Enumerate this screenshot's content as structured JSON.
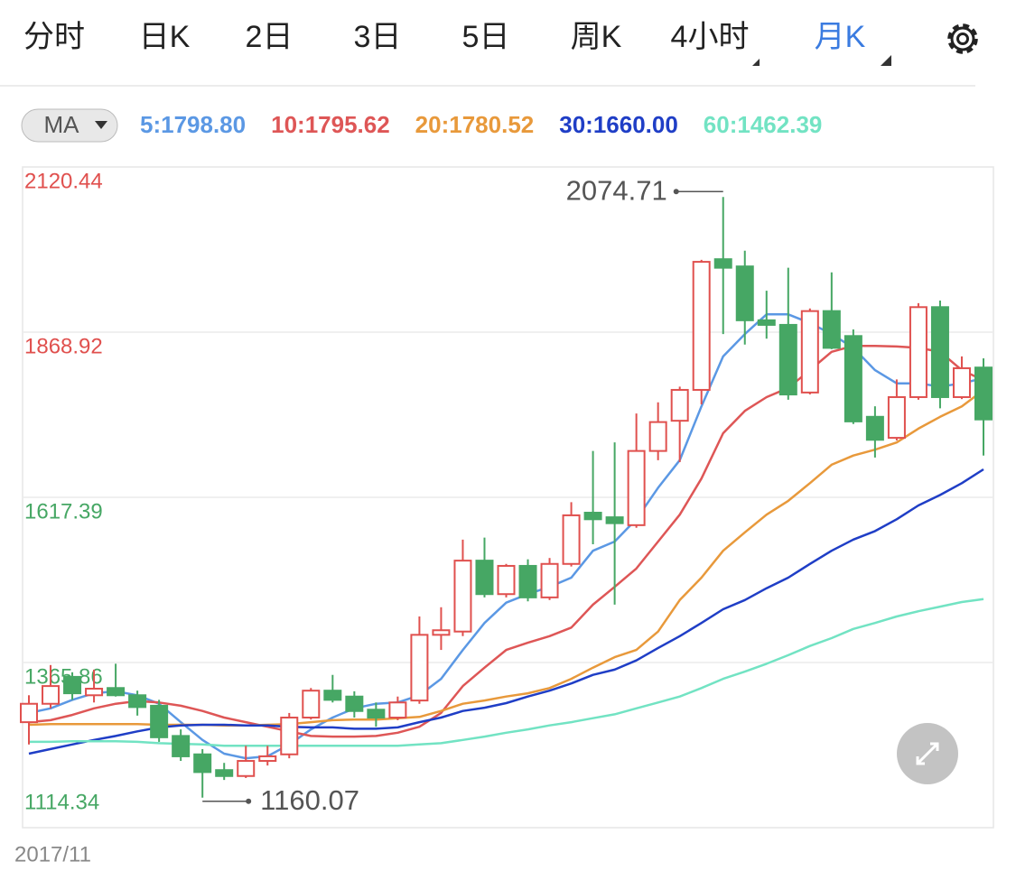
{
  "ui": {
    "tabs": [
      "分时",
      "日K",
      "2日",
      "3日",
      "5日",
      "周K",
      "4小时",
      "月K"
    ],
    "active_tab_index": 7,
    "indicator": "MA"
  },
  "chart_data": {
    "type": "candlestick",
    "categories": [
      "2017/11",
      null,
      null,
      null,
      null,
      null,
      null,
      null,
      null,
      null,
      null,
      null,
      null,
      null,
      null,
      null,
      null,
      null,
      null,
      null,
      null,
      null,
      null,
      null,
      null,
      null,
      null,
      null,
      null,
      null,
      null,
      null,
      null,
      null,
      null,
      null,
      null,
      null,
      null,
      null,
      null,
      null,
      null,
      null,
      null
    ],
    "open": [
      1275,
      1303,
      1344,
      1316,
      1327,
      1316,
      1300,
      1254,
      1226,
      1202,
      1193,
      1216,
      1226,
      1282,
      1323,
      1314,
      1294,
      1282,
      1308,
      1408,
      1413,
      1521,
      1470,
      1513,
      1465,
      1516,
      1594,
      1587,
      1575,
      1688,
      1734,
      1781,
      1980,
      1969,
      1887,
      1880,
      1777,
      1901,
      1863,
      1740,
      1708,
      1770,
      1907,
      1770,
      1815
    ],
    "close": [
      1303,
      1330,
      1319,
      1326,
      1316,
      1298,
      1252,
      1223,
      1199,
      1193,
      1216,
      1223,
      1282,
      1323,
      1309,
      1292,
      1282,
      1305,
      1408,
      1415,
      1521,
      1470,
      1513,
      1465,
      1516,
      1590,
      1584,
      1578,
      1688,
      1732,
      1781,
      1976,
      1967,
      1887,
      1880,
      1774,
      1901,
      1845,
      1733,
      1705,
      1770,
      1907,
      1770,
      1814,
      1736
    ],
    "high": [
      1316,
      1362,
      1351,
      1355,
      1364,
      1323,
      1309,
      1264,
      1234,
      1213,
      1239,
      1239,
      1289,
      1327,
      1347,
      1322,
      1305,
      1314,
      1436,
      1450,
      1553,
      1556,
      1516,
      1523,
      1525,
      1610,
      1688,
      1701,
      1745,
      1762,
      1786,
      1979,
      2074.71,
      1993,
      1932,
      1967,
      1905,
      1960,
      1873,
      1756,
      1797,
      1913,
      1917,
      1832,
      1829
    ],
    "low": [
      1241,
      1296,
      1309,
      1305,
      1314,
      1285,
      1245,
      1216,
      1160.07,
      1187,
      1190,
      1209,
      1220,
      1279,
      1305,
      1282,
      1268,
      1278,
      1303,
      1385,
      1406,
      1465,
      1465,
      1459,
      1461,
      1512,
      1546,
      1454,
      1571,
      1674,
      1671,
      1759,
      1866,
      1850,
      1859,
      1766,
      1774,
      1843,
      1729,
      1678,
      1704,
      1766,
      1753,
      1767,
      1681
    ],
    "up_color": "#e0504e",
    "down_color": "#46a764",
    "ylim": [
      1114.34,
      2120.44
    ],
    "yticks": [
      1114.34,
      1365.86,
      1617.39,
      1868.92,
      2120.44
    ],
    "ytick_colors": [
      "#46a764",
      "#46a764",
      "#46a764",
      "#e0504e",
      "#e0504e"
    ],
    "grid": true,
    "series": [
      {
        "label": "5:1798.80",
        "color": "#5b98e4",
        "values": [
          1289,
          1296,
          1309,
          1319,
          1322,
          1316,
          1303,
          1275,
          1248,
          1227,
          1220,
          1223,
          1241,
          1264,
          1282,
          1296,
          1303,
          1305,
          1316,
          1341,
          1385,
          1426,
          1457,
          1470,
          1481,
          1495,
          1536,
          1550,
          1584,
          1632,
          1674,
          1756,
          1832,
          1866,
          1896,
          1896,
          1883,
          1866,
          1845,
          1811,
          1791,
          1791,
          1786,
          1791,
          1798.8
        ]
      },
      {
        "label": "10:1795.62",
        "color": "#de5656",
        "values": [
          1275,
          1278,
          1286,
          1296,
          1303,
          1307,
          1305,
          1300,
          1292,
          1282,
          1275,
          1268,
          1261,
          1254,
          1253,
          1253,
          1254,
          1259,
          1268,
          1289,
          1330,
          1358,
          1385,
          1396,
          1406,
          1419,
          1454,
          1481,
          1509,
          1550,
          1591,
          1646,
          1715,
          1749,
          1770,
          1784,
          1811,
          1839,
          1848,
          1848,
          1847,
          1845,
          1839,
          1811,
          1795.62
        ]
      },
      {
        "label": "20:1780.52",
        "color": "#e8993b",
        "values": [
          1271,
          1272,
          1272,
          1272,
          1272,
          1272,
          1271,
          1271,
          1271,
          1270,
          1270,
          1271,
          1272,
          1275,
          1278,
          1279,
          1279,
          1281,
          1283,
          1292,
          1303,
          1308,
          1314,
          1319,
          1327,
          1341,
          1358,
          1374,
          1385,
          1413,
          1461,
          1495,
          1536,
          1564,
          1591,
          1612,
          1639,
          1667,
          1681,
          1690,
          1701,
          1722,
          1740,
          1756,
          1780.52
        ]
      },
      {
        "label": "30:1660.00",
        "color": "#1f3ec6",
        "values": [
          1227,
          1234,
          1241,
          1248,
          1254,
          1261,
          1267,
          1270,
          1271,
          1271,
          1270,
          1270,
          1268,
          1267,
          1267,
          1265,
          1265,
          1267,
          1275,
          1282,
          1292,
          1297,
          1304,
          1314,
          1323,
          1334,
          1347,
          1355,
          1369,
          1388,
          1406,
          1426,
          1447,
          1461,
          1479,
          1495,
          1516,
          1536,
          1553,
          1566,
          1584,
          1605,
          1621,
          1639,
          1660
        ]
      },
      {
        "label": "60:1462.39",
        "color": "#72e3c3",
        "values": [
          1245,
          1245,
          1246,
          1246,
          1246,
          1245,
          1243,
          1242,
          1241,
          1239,
          1239,
          1239,
          1239,
          1239,
          1239,
          1239,
          1239,
          1239,
          1241,
          1243,
          1248,
          1253,
          1259,
          1264,
          1270,
          1275,
          1281,
          1287,
          1296,
          1305,
          1314,
          1327,
          1341,
          1352,
          1364,
          1377,
          1391,
          1403,
          1417,
          1426,
          1436,
          1444,
          1451,
          1458,
          1462.39
        ]
      }
    ]
  }
}
